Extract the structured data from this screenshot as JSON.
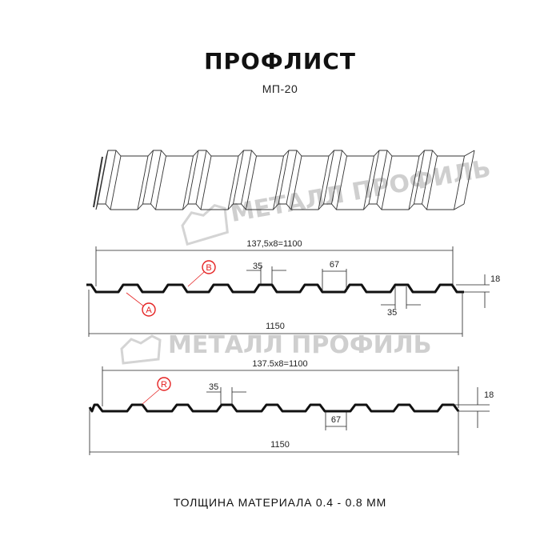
{
  "header": {
    "title": "ПРОФЛИСТ",
    "subtitle": "МП-20"
  },
  "footer": {
    "thickness": "ТОЛЩИНА МАТЕРИАЛА 0.4 - 0.8 ММ"
  },
  "watermark": "МЕТАЛЛ ПРОФИЛЬ",
  "profile_1": {
    "working_width": "137,5x8=1100",
    "total_width": "1150",
    "crest_width": "35",
    "trough_width": "67",
    "bottom_width": "35",
    "height": "18",
    "marker_a": "A",
    "marker_b": "B"
  },
  "profile_2": {
    "working_width": "137.5x8=1100",
    "total_width": "1150",
    "crest_width": "35",
    "trough_width": "67",
    "height": "18",
    "marker_r": "R"
  },
  "colors": {
    "marker": "#e52222",
    "line": "#111111",
    "watermark": "#cfcfcf"
  }
}
